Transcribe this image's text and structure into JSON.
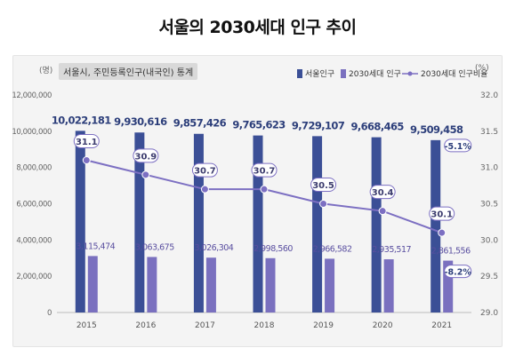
{
  "title": "서울의 2030세대 인구 추이",
  "source_note": "서울시, 주민등록인구(내국인) 통계",
  "left_unit": "(명)",
  "right_unit": "(%)",
  "colors": {
    "seoul_bar": "#3b4f96",
    "youth_bar": "#7a70bf",
    "ratio_line": "#7c6fc2",
    "value_text_dark": "#2c3e7a",
    "value_text_purple": "#5a4fa0",
    "callout_border": "#7c6fc2"
  },
  "legend": {
    "seoul": "서울인구",
    "youth": "2030세대 인구",
    "ratio": "2030세대 인구비율"
  },
  "chart_data": {
    "type": "bar",
    "categories": [
      "2015",
      "2016",
      "2017",
      "2018",
      "2019",
      "2020",
      "2021"
    ],
    "series": [
      {
        "name": "서울인구",
        "axis": "left",
        "values": [
          10022181,
          9930616,
          9857426,
          9765623,
          9729107,
          9668465,
          9509458
        ],
        "labels": [
          "10,022,181",
          "9,930,616",
          "9,857,426",
          "9,765,623",
          "9,729,107",
          "9,668,465",
          "9,509,458"
        ]
      },
      {
        "name": "2030세대 인구",
        "axis": "left",
        "values": [
          3115474,
          3063675,
          3026304,
          2998560,
          2966582,
          2935517,
          2861556
        ],
        "labels": [
          "3,115,474",
          "3,063,675",
          "3,026,304",
          "2,998,560",
          "2,966,582",
          "2,935,517",
          "2,861,556"
        ]
      },
      {
        "name": "2030세대 인구비율",
        "axis": "right",
        "type": "line",
        "values": [
          31.1,
          30.9,
          30.7,
          30.7,
          30.5,
          30.4,
          30.1
        ],
        "labels": [
          "31.1",
          "30.9",
          "30.7",
          "30.7",
          "30.5",
          "30.4",
          "30.1"
        ]
      }
    ],
    "left_axis": {
      "range": [
        0,
        12000000
      ],
      "ticks": [
        "0",
        "2,000,000",
        "4,000,000",
        "6,000,000",
        "8,000,000",
        "10,000,000",
        "12,000,000"
      ]
    },
    "right_axis": {
      "range": [
        29.0,
        32.0
      ],
      "ticks": [
        "29.0",
        "29.5",
        "30.0",
        "30.5",
        "31.0",
        "31.5",
        "32.0"
      ]
    },
    "annotations": [
      {
        "series": "서울인구",
        "category": "2021",
        "text": "-5.1%"
      },
      {
        "series": "2030세대 인구",
        "category": "2021",
        "text": "-8.2%"
      }
    ],
    "grid": false,
    "legend_position": "top-right"
  }
}
